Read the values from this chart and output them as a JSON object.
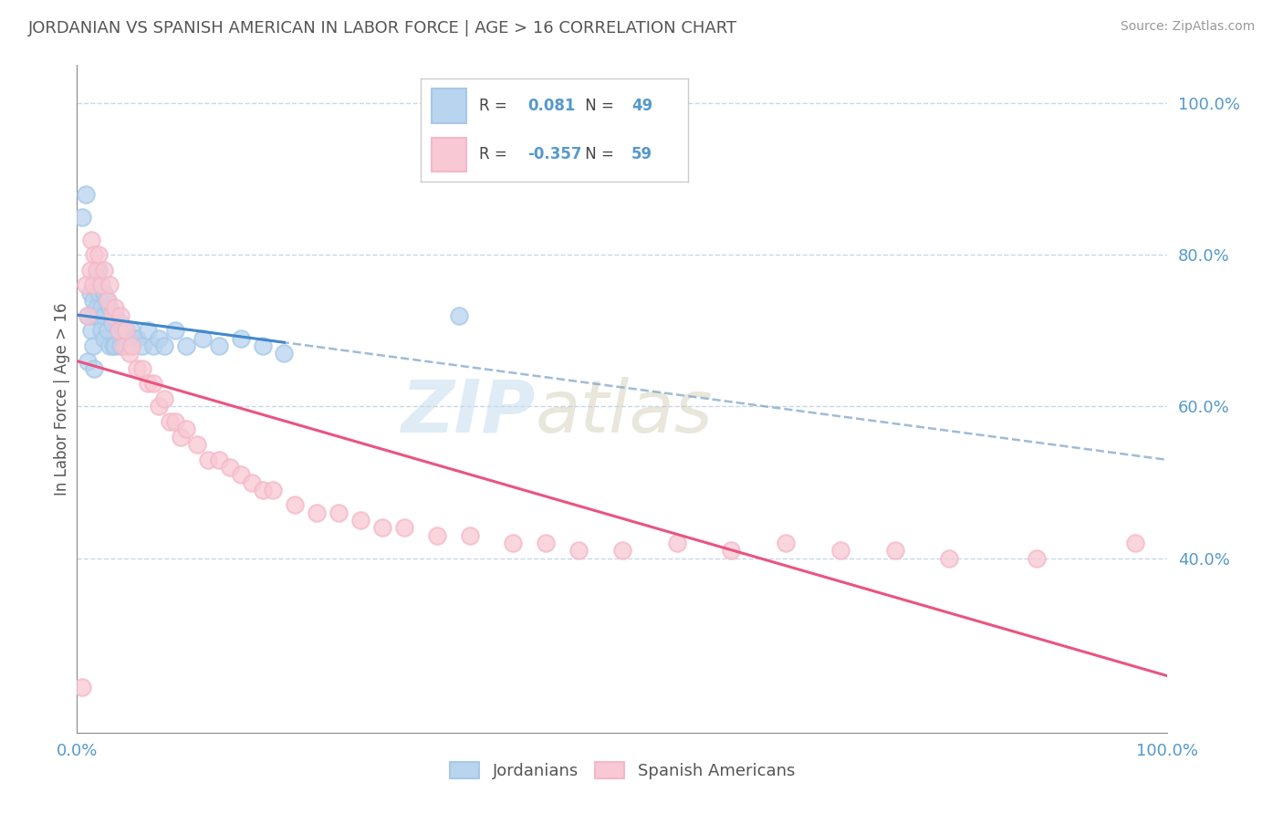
{
  "title": "JORDANIAN VS SPANISH AMERICAN IN LABOR FORCE | AGE > 16 CORRELATION CHART",
  "source": "Source: ZipAtlas.com",
  "ylabel": "In Labor Force | Age > 16",
  "watermark_zip": "ZIP",
  "watermark_atlas": "atlas",
  "jordanian_color": "#a8c8e8",
  "jordanian_fill": "#b8d4ee",
  "spanish_color": "#f4b8c8",
  "spanish_fill": "#f8c8d4",
  "R_jordan": 0.081,
  "N_jordan": 49,
  "R_spanish": -0.357,
  "N_spanish": 59,
  "legend_label_jordan": "Jordanians",
  "legend_label_spanish": "Spanish Americans",
  "xlim": [
    0.0,
    1.0
  ],
  "ylim": [
    0.17,
    1.05
  ],
  "ytick_positions": [
    0.4,
    0.6,
    0.8,
    1.0
  ],
  "ytick_labels": [
    "40.0%",
    "60.0%",
    "80.0%",
    "100.0%"
  ],
  "xtick_positions": [
    0.0,
    1.0
  ],
  "xtick_labels": [
    "0.0%",
    "100.0%"
  ],
  "grid_color": "#c8d8e8",
  "title_color": "#555555",
  "axis_color": "#888888",
  "background_color": "#ffffff",
  "blue_line_color": "#4488cc",
  "blue_dash_color": "#88aacc",
  "pink_line_color": "#e85580",
  "jordanian_x": [
    0.005,
    0.008,
    0.01,
    0.01,
    0.012,
    0.013,
    0.015,
    0.015,
    0.015,
    0.016,
    0.018,
    0.018,
    0.02,
    0.02,
    0.02,
    0.022,
    0.022,
    0.025,
    0.025,
    0.025,
    0.027,
    0.028,
    0.03,
    0.03,
    0.032,
    0.033,
    0.035,
    0.035,
    0.038,
    0.04,
    0.04,
    0.042,
    0.045,
    0.05,
    0.052,
    0.055,
    0.06,
    0.065,
    0.07,
    0.075,
    0.08,
    0.09,
    0.1,
    0.115,
    0.13,
    0.15,
    0.17,
    0.19,
    0.35
  ],
  "jordanian_y": [
    0.85,
    0.88,
    0.66,
    0.72,
    0.75,
    0.7,
    0.74,
    0.72,
    0.68,
    0.65,
    0.77,
    0.73,
    0.78,
    0.75,
    0.72,
    0.73,
    0.7,
    0.75,
    0.72,
    0.69,
    0.74,
    0.7,
    0.73,
    0.68,
    0.71,
    0.68,
    0.72,
    0.68,
    0.7,
    0.71,
    0.68,
    0.7,
    0.68,
    0.7,
    0.69,
    0.69,
    0.68,
    0.7,
    0.68,
    0.69,
    0.68,
    0.7,
    0.68,
    0.69,
    0.68,
    0.69,
    0.68,
    0.67,
    0.72
  ],
  "spanish_x": [
    0.005,
    0.008,
    0.01,
    0.012,
    0.013,
    0.015,
    0.016,
    0.018,
    0.02,
    0.022,
    0.025,
    0.028,
    0.03,
    0.032,
    0.035,
    0.038,
    0.04,
    0.042,
    0.045,
    0.048,
    0.05,
    0.055,
    0.06,
    0.065,
    0.07,
    0.075,
    0.08,
    0.085,
    0.09,
    0.095,
    0.1,
    0.11,
    0.12,
    0.13,
    0.14,
    0.15,
    0.16,
    0.17,
    0.18,
    0.2,
    0.22,
    0.24,
    0.26,
    0.28,
    0.3,
    0.33,
    0.36,
    0.4,
    0.43,
    0.46,
    0.5,
    0.55,
    0.6,
    0.65,
    0.7,
    0.75,
    0.8,
    0.88,
    0.97
  ],
  "spanish_y": [
    0.23,
    0.76,
    0.72,
    0.78,
    0.82,
    0.76,
    0.8,
    0.78,
    0.8,
    0.76,
    0.78,
    0.74,
    0.76,
    0.72,
    0.73,
    0.7,
    0.72,
    0.68,
    0.7,
    0.67,
    0.68,
    0.65,
    0.65,
    0.63,
    0.63,
    0.6,
    0.61,
    0.58,
    0.58,
    0.56,
    0.57,
    0.55,
    0.53,
    0.53,
    0.52,
    0.51,
    0.5,
    0.49,
    0.49,
    0.47,
    0.46,
    0.46,
    0.45,
    0.44,
    0.44,
    0.43,
    0.43,
    0.42,
    0.42,
    0.41,
    0.41,
    0.42,
    0.41,
    0.42,
    0.41,
    0.41,
    0.4,
    0.4,
    0.42
  ]
}
